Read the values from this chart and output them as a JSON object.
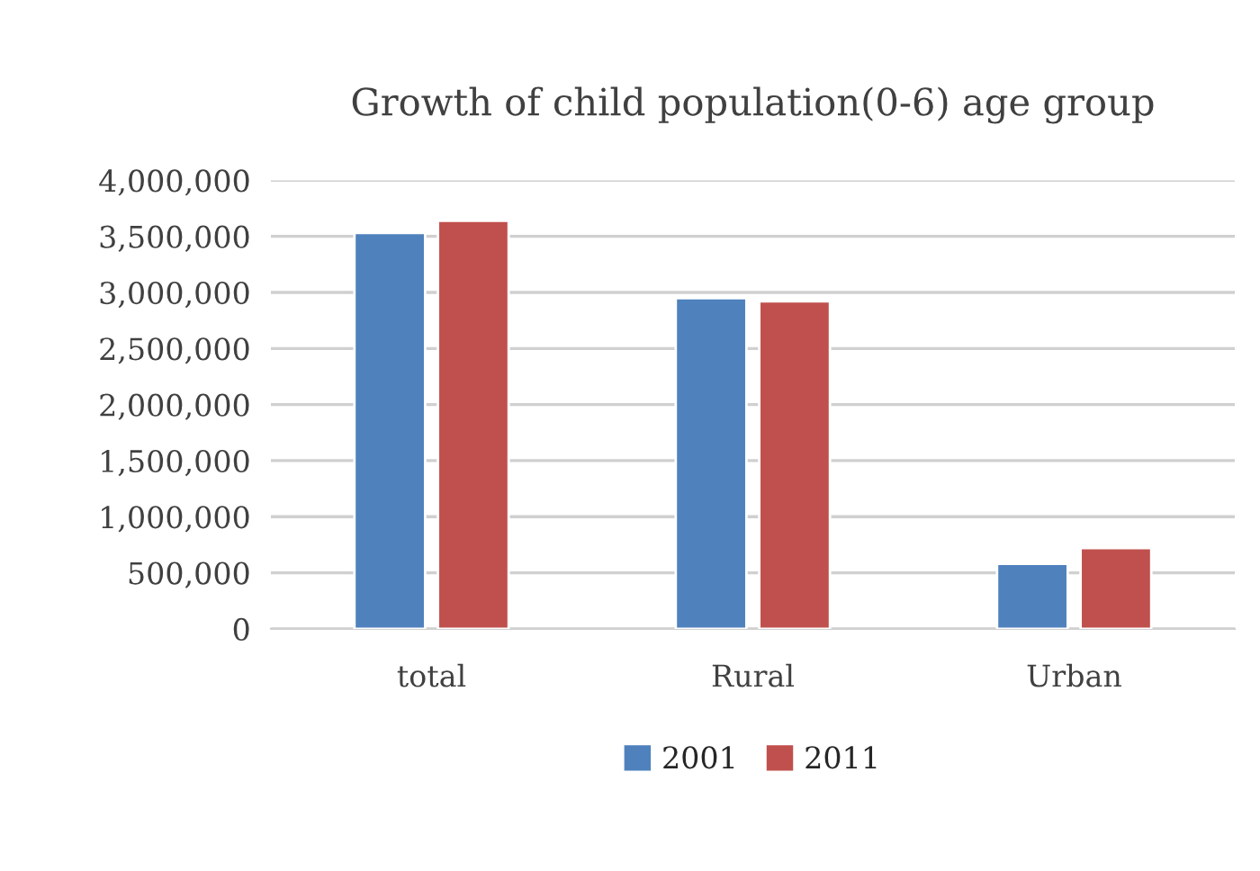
{
  "chart_data": {
    "type": "bar",
    "title": "Growth of child population(0-6) age group",
    "categories": [
      "total",
      "Rural",
      "Urban"
    ],
    "series": [
      {
        "name": "2001",
        "color": "#4f81bd",
        "values": [
          3530000,
          2950000,
          580000
        ]
      },
      {
        "name": "2011",
        "color": "#c0504d",
        "values": [
          3640000,
          2920000,
          720000
        ]
      }
    ],
    "ylim": [
      0,
      4000000
    ],
    "yticks": [
      {
        "value": 0,
        "label": "0"
      },
      {
        "value": 500000,
        "label": "500,000"
      },
      {
        "value": 1000000,
        "label": "1,000,000"
      },
      {
        "value": 1500000,
        "label": "1,500,000"
      },
      {
        "value": 2000000,
        "label": "2,000,000"
      },
      {
        "value": 2500000,
        "label": "2,500,000"
      },
      {
        "value": 3000000,
        "label": "3,000,000"
      },
      {
        "value": 3500000,
        "label": "3,500,000"
      },
      {
        "value": 4000000,
        "label": "4,000,000"
      }
    ],
    "grid": "y",
    "legend": "bottom"
  }
}
